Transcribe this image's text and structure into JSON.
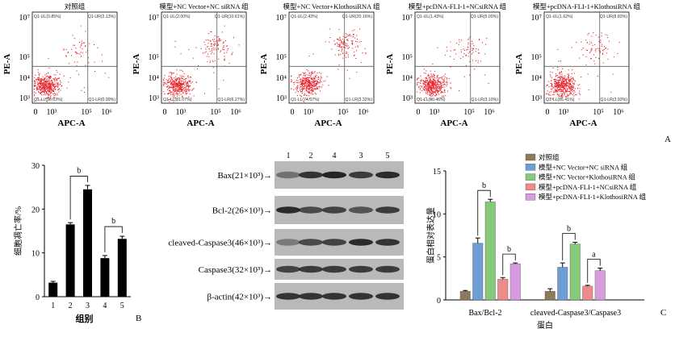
{
  "panel_letters": {
    "a": "A",
    "b": "B",
    "c": "C"
  },
  "flow": {
    "x_label": "APC-A",
    "y_label": "PE-A",
    "x_ticks": [
      "0",
      "10³",
      "10⁵",
      "10⁶"
    ],
    "y_ticks": [
      "10⁷",
      "10⁵",
      "10⁴",
      "10³"
    ],
    "panels": [
      {
        "title": "对照组",
        "ul": "Q1-UL(0.85%)",
        "ur": "Q1-UR(2.13%)",
        "ll": "Q1-LL(96.03%)",
        "lr": "Q1-LR(0.99%)"
      },
      {
        "title": "模型+NC Vector+NC siRNA 组",
        "ul": "Q1-UL(2.00%)",
        "ur": "Q1-UR(10.61%)",
        "ll": "Q1-LL(81.07%)",
        "lr": "Q1-LR(6.27%)"
      },
      {
        "title": "模型+NC Vector+KlothosiRNA 组",
        "ul": "Q1-UL(2.43%)",
        "ur": "Q1-UR(20.16%)",
        "ll": "Q1-LL(74.07%)",
        "lr": "Q1-LR(3.32%)"
      },
      {
        "title": "模型+pcDNA-FLI-1+NCsiRNA 组",
        "ul": "Q1-UL(1.43%)",
        "ur": "Q1-UR(5.00%)",
        "ll": "Q1-LL(90.46%)",
        "lr": "Q1-LR(3.10%)"
      },
      {
        "title": "模型+pcDNA-FLI-1+KlothosiRNA 组",
        "ul": "Q1-UL(1.62%)",
        "ur": "Q1-UR(8.83%)",
        "ll": "Q1-LL(85.41%)",
        "lr": "Q1-LR(3.93%)"
      }
    ]
  },
  "chart_data": [
    {
      "type": "bar",
      "categories": [
        "1",
        "2",
        "3",
        "4",
        "5"
      ],
      "values": [
        3.2,
        16.5,
        24.5,
        8.8,
        13.2
      ],
      "errors": [
        0.3,
        0.4,
        0.9,
        0.6,
        0.6
      ],
      "xlabel": "组别",
      "ylabel": "细胞凋亡率/%",
      "ylim": [
        0,
        30
      ],
      "yticks": [
        "0",
        "10",
        "20",
        "30"
      ],
      "significance": [
        {
          "from": "2",
          "to": "3",
          "label": "b"
        },
        {
          "from": "4",
          "to": "5",
          "label": "b"
        }
      ]
    },
    {
      "type": "bar",
      "categories": [
        "Bax/Bcl-2",
        "cleaved-Caspase3/Caspase3"
      ],
      "series": [
        {
          "name": "对照组",
          "color": "#8c7a5a",
          "values": [
            1.0,
            1.0
          ],
          "errors": [
            0.1,
            0.3
          ]
        },
        {
          "name": "模型+NC Vector+NC siRNA 组",
          "color": "#6d9ed6",
          "values": [
            6.6,
            3.8
          ],
          "errors": [
            0.6,
            0.5
          ]
        },
        {
          "name": "模型+NC Vector+KlothosiRNA 组",
          "color": "#86c97a",
          "values": [
            11.4,
            6.5
          ],
          "errors": [
            0.3,
            0.2
          ]
        },
        {
          "name": "模型+pcDNA-FLI-1+NCsiRNA 组",
          "color": "#ef8a8a",
          "values": [
            2.4,
            1.6
          ],
          "errors": [
            0.2,
            0.1
          ]
        },
        {
          "name": "模型+pcDNA-FLI-1+KlothosiRNA 组",
          "color": "#d79be0",
          "values": [
            4.2,
            3.4
          ],
          "errors": [
            0.1,
            0.3
          ]
        }
      ],
      "xlabel": "蛋白",
      "ylabel": "蛋白相对表达量",
      "ylim": [
        0,
        15
      ],
      "yticks": [
        "0",
        "5",
        "10",
        "15"
      ],
      "significance": [
        {
          "category": "Bax/Bcl-2",
          "from": 1,
          "to": 2,
          "label": "b"
        },
        {
          "category": "Bax/Bcl-2",
          "from": 3,
          "to": 4,
          "label": "b"
        },
        {
          "category": "cleaved-Caspase3/Caspase3",
          "from": 1,
          "to": 2,
          "label": "b"
        },
        {
          "category": "cleaved-Caspase3/Caspase3",
          "from": 3,
          "to": 4,
          "label": "a"
        }
      ]
    }
  ],
  "western": {
    "lanes": [
      "1",
      "2",
      "4",
      "3",
      "5"
    ],
    "rows": [
      {
        "label": "Bax(21×10³)→",
        "intensity": [
          0.45,
          0.85,
          0.95,
          0.8,
          0.9
        ]
      },
      {
        "label": "Bcl-2(26×10³)→",
        "intensity": [
          0.9,
          0.7,
          0.75,
          0.65,
          0.8
        ]
      },
      {
        "label": "cleaved-Caspase3(46×10³)→",
        "intensity": [
          0.4,
          0.7,
          0.75,
          0.9,
          0.85
        ]
      },
      {
        "label": "Caspase3(32×10³)→",
        "intensity": [
          0.75,
          0.8,
          0.8,
          0.8,
          0.8
        ]
      },
      {
        "label": "β-actin(42×10³)→",
        "intensity": [
          0.85,
          0.85,
          0.85,
          0.85,
          0.85
        ]
      }
    ]
  }
}
